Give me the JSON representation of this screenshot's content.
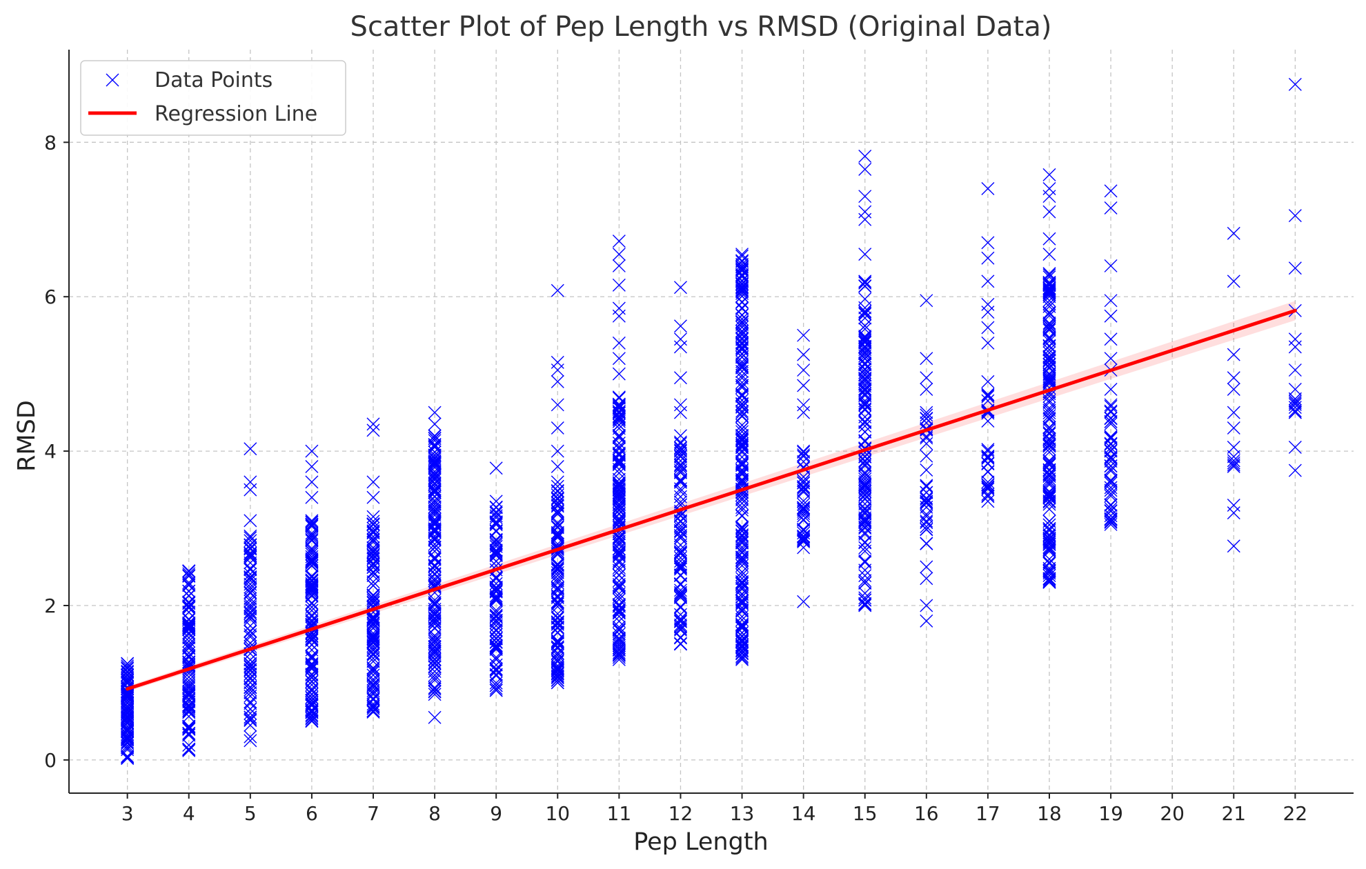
{
  "chart_data": {
    "type": "scatter",
    "title": "Scatter Plot of Pep Length vs RMSD (Original Data)",
    "xlabel": "Pep Length",
    "ylabel": "RMSD",
    "xlim": [
      2.05,
      22.95
    ],
    "ylim": [
      -0.43,
      9.2
    ],
    "x_ticks": [
      3,
      4,
      5,
      6,
      7,
      8,
      9,
      10,
      11,
      12,
      13,
      14,
      15,
      16,
      17,
      18,
      19,
      20,
      21,
      22
    ],
    "y_ticks": [
      0,
      2,
      4,
      6,
      8
    ],
    "grid": true,
    "legend": {
      "placement": "top-left",
      "entries": [
        "Data Points",
        "Regression Line"
      ]
    },
    "series": [
      {
        "name": "Data Points",
        "marker": "x",
        "color": "#0000ff",
        "groups": [
          {
            "x": 3,
            "ymin": 0.02,
            "ymax": 1.25,
            "n": 90,
            "extra": []
          },
          {
            "x": 4,
            "ymin": 0.12,
            "ymax": 2.45,
            "n": 110,
            "extra": []
          },
          {
            "x": 5,
            "ymin": 0.45,
            "ymax": 2.9,
            "n": 80,
            "extra": [
              0.25,
              0.3,
              3.1,
              3.5,
              3.6,
              4.03
            ]
          },
          {
            "x": 6,
            "ymin": 0.5,
            "ymax": 3.1,
            "n": 120,
            "extra": [
              3.4,
              3.6,
              3.8,
              4.0
            ]
          },
          {
            "x": 7,
            "ymin": 0.62,
            "ymax": 3.15,
            "n": 110,
            "extra": [
              3.4,
              3.6,
              4.27,
              4.35
            ]
          },
          {
            "x": 8,
            "ymin": 0.85,
            "ymax": 4.2,
            "n": 140,
            "extra": [
              0.55,
              4.35,
              4.5
            ]
          },
          {
            "x": 9,
            "ymin": 0.9,
            "ymax": 3.35,
            "n": 90,
            "extra": [
              3.78
            ]
          },
          {
            "x": 10,
            "ymin": 1.0,
            "ymax": 3.6,
            "n": 110,
            "extra": [
              3.8,
              4.0,
              4.3,
              4.6,
              4.9,
              5.05,
              5.15,
              6.08
            ]
          },
          {
            "x": 11,
            "ymin": 1.3,
            "ymax": 4.7,
            "n": 150,
            "extra": [
              5.0,
              5.2,
              5.4,
              5.75,
              5.85,
              6.15,
              6.4,
              6.55,
              6.72
            ]
          },
          {
            "x": 12,
            "ymin": 1.5,
            "ymax": 4.2,
            "n": 90,
            "extra": [
              4.5,
              4.6,
              4.95,
              5.35,
              5.45,
              5.62,
              6.12
            ]
          },
          {
            "x": 13,
            "ymin": 1.3,
            "ymax": 6.55,
            "n": 230,
            "extra": []
          },
          {
            "x": 14,
            "ymin": 2.75,
            "ymax": 4.0,
            "n": 40,
            "extra": [
              2.05,
              4.5,
              4.6,
              4.85,
              5.05,
              5.25,
              5.5
            ]
          },
          {
            "x": 15,
            "ymin": 2.0,
            "ymax": 6.2,
            "n": 140,
            "extra": [
              6.55,
              7.0,
              7.1,
              7.3,
              7.65,
              7.82
            ]
          },
          {
            "x": 16,
            "ymin": 2.8,
            "ymax": 4.5,
            "n": 30,
            "extra": [
              1.8,
              2.0,
              2.35,
              2.5,
              4.8,
              4.95,
              5.2,
              5.95
            ]
          },
          {
            "x": 17,
            "ymin": 3.35,
            "ymax": 4.9,
            "n": 30,
            "extra": [
              5.4,
              5.6,
              5.8,
              5.9,
              6.2,
              6.5,
              6.7,
              7.4
            ]
          },
          {
            "x": 18,
            "ymin": 2.3,
            "ymax": 6.3,
            "n": 160,
            "extra": [
              6.55,
              6.75,
              7.1,
              7.3,
              7.4,
              7.58
            ]
          },
          {
            "x": 19,
            "ymin": 3.05,
            "ymax": 4.6,
            "n": 50,
            "extra": [
              4.8,
              5.05,
              5.2,
              5.45,
              5.75,
              5.95,
              6.4,
              7.15,
              7.37
            ]
          },
          {
            "x": 21,
            "ymin": 3.8,
            "ymax": 4.05,
            "n": 4,
            "extra": [
              2.77,
              3.2,
              3.3,
              4.3,
              4.5,
              4.8,
              4.95,
              5.25,
              6.2,
              6.82
            ]
          },
          {
            "x": 22,
            "ymin": 4.5,
            "ymax": 4.8,
            "n": 8,
            "extra": [
              3.75,
              4.05,
              5.05,
              5.35,
              5.45,
              5.82,
              6.37,
              7.05,
              8.75
            ]
          }
        ]
      },
      {
        "name": "Regression Line",
        "type": "line",
        "color": "#ff0000",
        "x": [
          3,
          22
        ],
        "y": [
          0.92,
          5.82
        ]
      }
    ]
  }
}
